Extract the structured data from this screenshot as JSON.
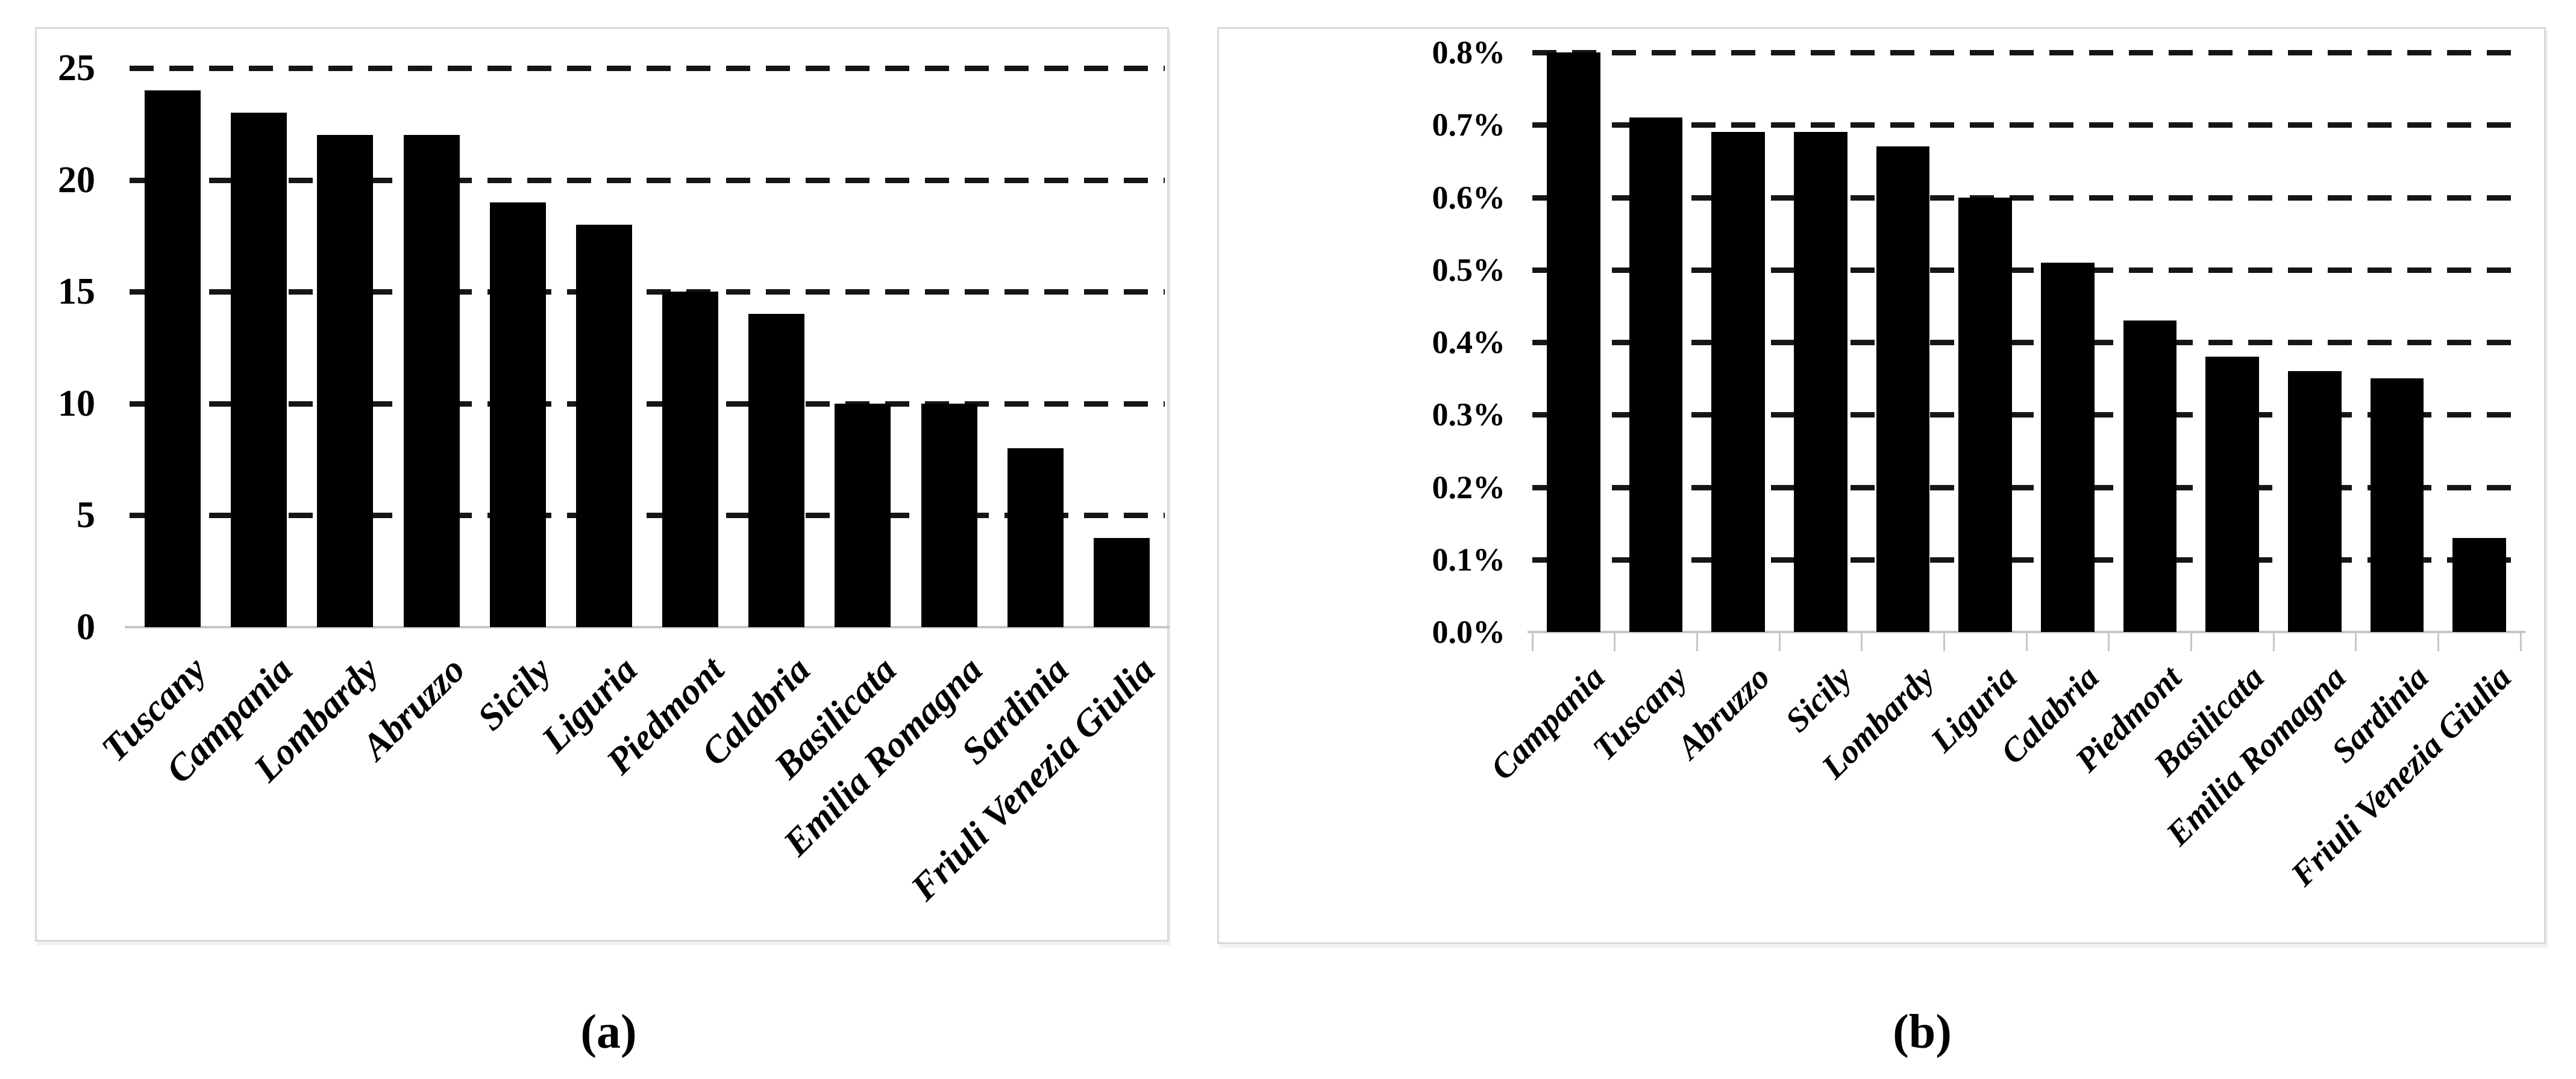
{
  "figure": {
    "caption_a": "(a)",
    "caption_b": "(b)"
  },
  "colors": {
    "bar": "#000000",
    "gridline": "#161616",
    "axis_line": "#c6c6c6",
    "panel_border": "#d8d8d8",
    "text": "#000000",
    "background": "#ffffff"
  },
  "chart_data": [
    {
      "panel": "a",
      "type": "bar",
      "title": "",
      "xlabel": "",
      "ylabel": "",
      "legend": "none",
      "grid": "horizontal-dashed",
      "bar_color": "#000000",
      "categories": [
        "Tuscany",
        "Campania",
        "Lombardy",
        "Abruzzo",
        "Sicily",
        "Liguria",
        "Piedmont",
        "Calabria",
        "Basilicata",
        "Emilia Romagna",
        "Sardinia",
        "Friuli Venezia Giulia"
      ],
      "values": [
        24,
        23,
        22,
        22,
        19,
        18,
        15,
        14,
        10,
        10,
        8,
        4
      ],
      "ylim": [
        0,
        25
      ],
      "ytick_step": 5,
      "ytick_labels": [
        "0",
        "5",
        "10",
        "15",
        "20",
        "25"
      ]
    },
    {
      "panel": "b",
      "type": "bar",
      "title": "",
      "xlabel": "",
      "ylabel": "",
      "legend": "none",
      "grid": "horizontal-dashed",
      "bar_color": "#000000",
      "categories": [
        "Campania",
        "Tuscany",
        "Abruzzo",
        "Sicily",
        "Lombardy",
        "Liguria",
        "Calabria",
        "Piedmont",
        "Basilicata",
        "Emilia Romagna",
        "Sardinia",
        "Friuli Venezia Giulia"
      ],
      "values": [
        0.8,
        0.71,
        0.69,
        0.69,
        0.67,
        0.6,
        0.51,
        0.43,
        0.38,
        0.36,
        0.35,
        0.13
      ],
      "ylim": [
        0,
        0.8
      ],
      "ytick_step": 0.1,
      "ytick_labels": [
        "0.0%",
        "0.1%",
        "0.2%",
        "0.3%",
        "0.4%",
        "0.5%",
        "0.6%",
        "0.7%",
        "0.8%"
      ]
    }
  ]
}
